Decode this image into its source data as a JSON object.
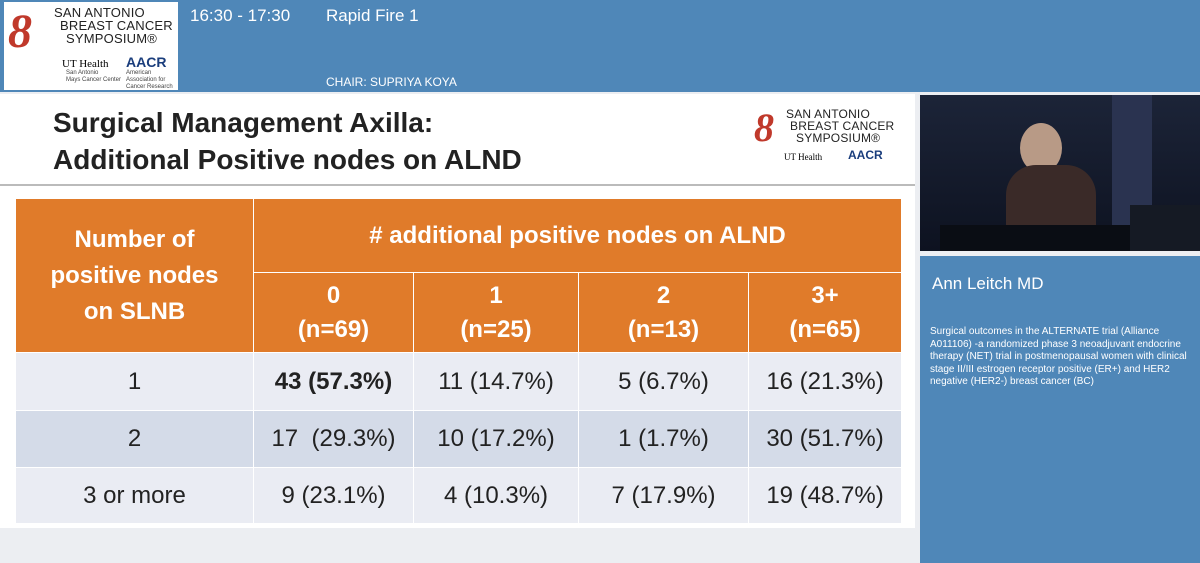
{
  "header": {
    "time": "16:30 - 17:30",
    "session": "Rapid Fire 1",
    "chair": "CHAIR: SUPRIYA KOYA"
  },
  "logo": {
    "line1": "SAN ANTONIO",
    "line2": "BREAST CANCER",
    "line3": "SYMPOSIUM®",
    "ut": "UT Health",
    "ut_sub1": "San Antonio",
    "ut_sub2": "Mays Cancer Center",
    "aacr": "AACR",
    "aacr_sub": "American Association for Cancer Research"
  },
  "slide": {
    "title": [
      "Surgical Management Axilla:",
      "Additional Positive nodes on ALND"
    ]
  },
  "table": {
    "row_header": "Number of positive nodes on SLNB",
    "column_group": "# additional positive nodes on ALND",
    "columns": [
      [
        "0",
        "(n=69)"
      ],
      [
        "1",
        "(n=25)"
      ],
      [
        "2",
        "(n=13)"
      ],
      [
        "3+",
        "(n=65)"
      ]
    ],
    "rows": [
      [
        "1",
        "43 (57.3%)",
        "11 (14.7%)",
        "5 (6.7%)",
        "16 (21.3%)"
      ],
      [
        "2",
        "17  (29.3%)",
        "10 (17.2%)",
        "1 (1.7%)",
        "30 (51.7%)"
      ],
      [
        "3 or more",
        "9 (23.1%)",
        "4 (10.3%)",
        "7 (17.9%)",
        "19 (48.7%)"
      ]
    ]
  },
  "speaker": {
    "name": "Ann Leitch MD",
    "talk": "Surgical outcomes in the ALTERNATE trial (Alliance A011106) -a randomized phase 3 neoadjuvant endocrine therapy (NET) trial in postmenopausal women with clinical stage II/III estrogen receptor positive (ER+) and HER2 negative (HER2-) breast cancer (BC)"
  }
}
